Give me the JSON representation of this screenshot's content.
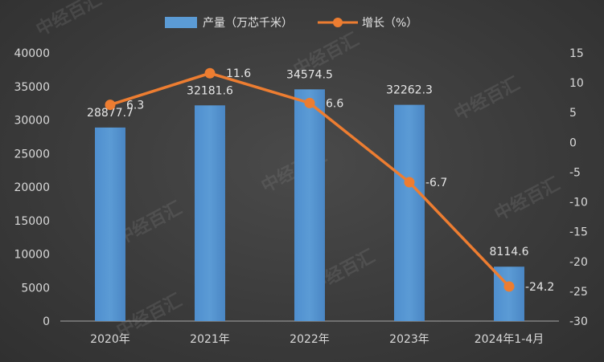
{
  "chart_data": {
    "type": "bar+line",
    "categories": [
      "2020年",
      "2021年",
      "2022年",
      "2023年",
      "2024年1-4月"
    ],
    "series": [
      {
        "name": "产量（万芯千米）",
        "type": "bar",
        "axis": "left",
        "color": "#5b9bd5",
        "values": [
          28877.7,
          32181.6,
          34574.5,
          32262.3,
          8114.6
        ],
        "labels": [
          "28877.7",
          "32181.6",
          "34574.5",
          "32262.3",
          "8114.6"
        ]
      },
      {
        "name": "增长（%）",
        "type": "line",
        "axis": "right",
        "color": "#ed7d31",
        "values": [
          6.3,
          11.6,
          6.6,
          -6.7,
          -24.2
        ],
        "labels": [
          "6.3",
          "11.6",
          "6.6",
          "-6.7",
          "-24.2"
        ]
      }
    ],
    "y_left": {
      "min": 0,
      "max": 40000,
      "ticks": [
        "0",
        "5000",
        "10000",
        "15000",
        "20000",
        "25000",
        "30000",
        "35000",
        "40000"
      ]
    },
    "y_right": {
      "min": -30,
      "max": 15,
      "ticks": [
        "-30",
        "-25",
        "-20",
        "-15",
        "-10",
        "-5",
        "0",
        "5",
        "10",
        "15"
      ]
    },
    "grid": false,
    "legend_position": "top-center"
  },
  "watermark": "中经百汇"
}
